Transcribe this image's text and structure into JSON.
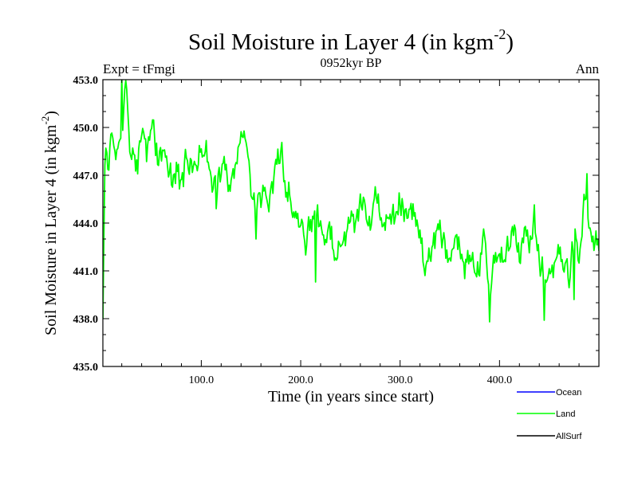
{
  "chart_data": {
    "type": "line",
    "title": "Soil Moisture in Layer 4 (in kgm",
    "title_sup": "-2",
    "title_end": ")",
    "subtitle_left": "Expt = tFmgi",
    "subtitle_center": "0952kyr BP",
    "subtitle_right": "Ann",
    "xlabel": "Time (in years since start)",
    "ylabel": "Soil Moisture in Layer 4 (in kgm",
    "ylabel_sup": "-2",
    "ylabel_end": ")",
    "xlim": [
      1,
      500
    ],
    "ylim": [
      435.0,
      453.0
    ],
    "xticks": [
      100,
      200,
      300,
      400
    ],
    "xtick_labels": [
      "100.0",
      "200.0",
      "300.0",
      "400.0"
    ],
    "yticks": [
      435,
      438,
      441,
      444,
      447,
      450,
      453
    ],
    "ytick_labels": [
      "435.0",
      "438.0",
      "441.0",
      "444.0",
      "447.0",
      "450.0",
      "453.0"
    ],
    "legend": [
      {
        "name": "Ocean",
        "color": "#0000ff"
      },
      {
        "name": "Land",
        "color": "#00ff00"
      },
      {
        "name": "AllSurf",
        "color": "#000000"
      }
    ],
    "series": [
      {
        "name": "Land",
        "color": "#00ff00",
        "anchors_x": [
          1,
          3,
          6,
          10,
          15,
          20,
          24,
          28,
          32,
          36,
          40,
          45,
          50,
          55,
          60,
          65,
          70,
          75,
          80,
          85,
          90,
          95,
          100,
          105,
          110,
          115,
          120,
          125,
          130,
          135,
          140,
          145,
          150,
          155,
          160,
          165,
          170,
          175,
          180,
          185,
          190,
          195,
          200,
          205,
          210,
          215,
          220,
          225,
          230,
          235,
          240,
          245,
          250,
          255,
          260,
          265,
          270,
          275,
          280,
          285,
          290,
          295,
          300,
          305,
          310,
          315,
          320,
          325,
          330,
          335,
          340,
          345,
          350,
          355,
          360,
          365,
          370,
          375,
          380,
          385,
          390,
          395,
          400,
          405,
          410,
          415,
          420,
          425,
          430,
          435,
          440,
          445,
          450,
          455,
          460,
          465,
          470,
          475,
          480,
          485,
          490,
          495,
          500
        ],
        "anchors_y": [
          438.5,
          448.5,
          448.0,
          449.5,
          448.0,
          449.0,
          452.5,
          449.0,
          448.0,
          447.5,
          449.5,
          448.0,
          450.0,
          448.5,
          447.5,
          448.5,
          447.0,
          447.5,
          446.0,
          448.0,
          447.5,
          446.5,
          449.0,
          448.5,
          447.0,
          446.0,
          447.0,
          447.5,
          446.0,
          448.0,
          449.5,
          448.5,
          446.0,
          445.0,
          445.5,
          446.0,
          445.5,
          447.0,
          449.0,
          446.5,
          446.0,
          444.5,
          443.0,
          443.5,
          443.5,
          444.5,
          444.0,
          443.0,
          443.5,
          442.5,
          443.0,
          443.0,
          444.0,
          443.5,
          445.5,
          445.0,
          444.0,
          447.0,
          445.0,
          444.5,
          444.0,
          444.5,
          445.5,
          444.5,
          445.5,
          444.0,
          443.0,
          441.5,
          442.0,
          443.0,
          443.5,
          442.5,
          441.5,
          442.0,
          442.5,
          441.0,
          442.0,
          441.5,
          441.0,
          443.0,
          439.5,
          442.0,
          442.5,
          441.5,
          443.0,
          443.0,
          442.0,
          443.5,
          442.5,
          444.5,
          441.5,
          441.0,
          440.5,
          441.5,
          442.0,
          441.5,
          440.5,
          443.5,
          442.0,
          445.5,
          444.5,
          443.0,
          442.5
        ],
        "noise_amplitude": 1.3,
        "seed": 952,
        "extremes": [
          [
            20,
            453.2
          ],
          [
            115,
            444.9
          ],
          [
            155,
            443.0
          ],
          [
            205,
            442.0
          ],
          [
            215,
            440.3
          ],
          [
            390,
            437.8
          ],
          [
            445,
            437.9
          ],
          [
            475,
            439.2
          ],
          [
            488,
            447.1
          ]
        ]
      }
    ]
  }
}
